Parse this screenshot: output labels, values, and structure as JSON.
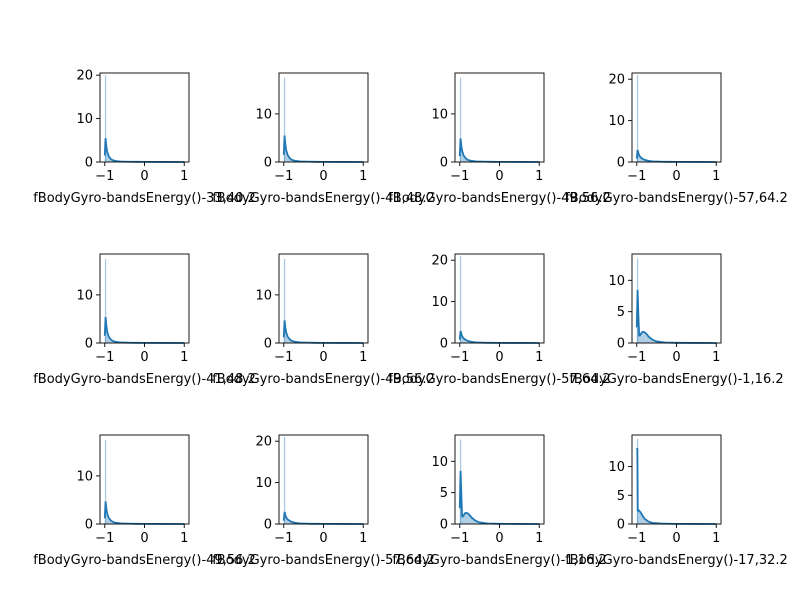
{
  "chart_data": [
    {
      "type": "area",
      "xlabel": "fBodyGyro-bandsEnergy()-33,40.2",
      "xticks": [
        -1,
        0,
        1
      ],
      "yticks": [
        0,
        10,
        20
      ],
      "ylim": [
        0,
        20.5
      ],
      "xlim": [
        -1.12,
        1.12
      ],
      "spike_x": -0.98,
      "spike_height": 20,
      "kde": {
        "x": [
          -1.0,
          -0.98,
          -0.96,
          -0.94,
          -0.9,
          -0.85,
          -0.8,
          -0.7,
          -0.6,
          -0.4,
          -0.2,
          0,
          0.5,
          1.0
        ],
        "y": [
          1.5,
          5.5,
          3.6,
          2.4,
          1.3,
          0.7,
          0.4,
          0.2,
          0.12,
          0.06,
          0.04,
          0.03,
          0.01,
          0.0
        ]
      }
    },
    {
      "type": "area",
      "xlabel": "fBodyGyro-bandsEnergy()-41,48.2",
      "xticks": [
        -1,
        0,
        1
      ],
      "yticks": [
        0,
        10
      ],
      "ylim": [
        0,
        18.5
      ],
      "xlim": [
        -1.12,
        1.12
      ],
      "spike_x": -0.98,
      "spike_height": 17.5,
      "kde": {
        "x": [
          -1.0,
          -0.98,
          -0.96,
          -0.94,
          -0.9,
          -0.85,
          -0.8,
          -0.7,
          -0.6,
          -0.4,
          -0.2,
          0,
          0.5,
          1.0
        ],
        "y": [
          1.5,
          5.5,
          3.7,
          2.5,
          1.4,
          0.8,
          0.45,
          0.22,
          0.13,
          0.07,
          0.04,
          0.03,
          0.01,
          0.0
        ]
      }
    },
    {
      "type": "area",
      "xlabel": "fBodyGyro-bandsEnergy()-49,56.2",
      "xticks": [
        -1,
        0,
        1
      ],
      "yticks": [
        0,
        10
      ],
      "ylim": [
        0,
        18.5
      ],
      "xlim": [
        -1.12,
        1.12
      ],
      "spike_x": -0.98,
      "spike_height": 17.5,
      "kde": {
        "x": [
          -1.0,
          -0.98,
          -0.96,
          -0.94,
          -0.9,
          -0.85,
          -0.8,
          -0.7,
          -0.6,
          -0.4,
          -0.2,
          0,
          0.5,
          1.0
        ],
        "y": [
          1.2,
          4.9,
          3.3,
          2.3,
          1.3,
          0.75,
          0.45,
          0.22,
          0.13,
          0.07,
          0.04,
          0.03,
          0.01,
          0.0
        ]
      }
    },
    {
      "type": "area",
      "xlabel": "fBodyGyro-bandsEnergy()-57,64.2",
      "xticks": [
        -1,
        0,
        1
      ],
      "yticks": [
        0,
        10,
        20
      ],
      "ylim": [
        0,
        21.5
      ],
      "xlim": [
        -1.12,
        1.12
      ],
      "spike_x": -0.98,
      "spike_height": 21,
      "kde": {
        "x": [
          -1.0,
          -0.98,
          -0.96,
          -0.94,
          -0.9,
          -0.85,
          -0.8,
          -0.7,
          -0.6,
          -0.4,
          -0.2,
          0,
          0.5,
          1.0
        ],
        "y": [
          0.8,
          2.9,
          2.2,
          1.6,
          1.1,
          0.75,
          0.5,
          0.28,
          0.16,
          0.08,
          0.05,
          0.03,
          0.01,
          0.0
        ]
      }
    },
    {
      "type": "area",
      "xlabel": "fBodyGyro-bandsEnergy()-41,48.2",
      "xticks": [
        -1,
        0,
        1
      ],
      "yticks": [
        0,
        10
      ],
      "ylim": [
        0,
        18.5
      ],
      "xlim": [
        -1.12,
        1.12
      ],
      "spike_x": -0.98,
      "spike_height": 17.5,
      "kde": {
        "x": [
          -1.0,
          -0.98,
          -0.96,
          -0.94,
          -0.9,
          -0.85,
          -0.8,
          -0.7,
          -0.6,
          -0.4,
          -0.2,
          0,
          0.5,
          1.0
        ],
        "y": [
          1.5,
          5.4,
          3.6,
          2.4,
          1.3,
          0.75,
          0.42,
          0.2,
          0.12,
          0.06,
          0.04,
          0.03,
          0.01,
          0.0
        ]
      }
    },
    {
      "type": "area",
      "xlabel": "fBodyGyro-bandsEnergy()-49,56.2",
      "xticks": [
        -1,
        0,
        1
      ],
      "yticks": [
        0,
        10
      ],
      "ylim": [
        0,
        18.5
      ],
      "xlim": [
        -1.12,
        1.12
      ],
      "spike_x": -0.98,
      "spike_height": 17.5,
      "kde": {
        "x": [
          -1.0,
          -0.98,
          -0.96,
          -0.94,
          -0.9,
          -0.85,
          -0.8,
          -0.7,
          -0.6,
          -0.4,
          -0.2,
          0,
          0.5,
          1.0
        ],
        "y": [
          1.2,
          4.7,
          3.2,
          2.2,
          1.3,
          0.75,
          0.45,
          0.22,
          0.13,
          0.07,
          0.04,
          0.03,
          0.01,
          0.0
        ]
      }
    },
    {
      "type": "area",
      "xlabel": "fBodyGyro-bandsEnergy()-57,64.2",
      "xticks": [
        -1,
        0,
        1
      ],
      "yticks": [
        0,
        10,
        20
      ],
      "ylim": [
        0,
        21.5
      ],
      "xlim": [
        -1.12,
        1.12
      ],
      "spike_x": -0.98,
      "spike_height": 21,
      "kde": {
        "x": [
          -1.0,
          -0.98,
          -0.96,
          -0.94,
          -0.9,
          -0.85,
          -0.8,
          -0.7,
          -0.6,
          -0.4,
          -0.2,
          0,
          0.5,
          1.0
        ],
        "y": [
          0.8,
          2.9,
          2.2,
          1.6,
          1.1,
          0.75,
          0.5,
          0.28,
          0.16,
          0.08,
          0.05,
          0.03,
          0.01,
          0.0
        ]
      }
    },
    {
      "type": "area",
      "xlabel": "fBodyGyro-bandsEnergy()-1,16.2",
      "xticks": [
        -1,
        0,
        1
      ],
      "yticks": [
        0,
        5,
        10
      ],
      "ylim": [
        0,
        14.2
      ],
      "xlim": [
        -1.12,
        1.12
      ],
      "spike_x": -0.98,
      "spike_height": 13.5,
      "kde": {
        "x": [
          -1.0,
          -0.98,
          -0.96,
          -0.94,
          -0.92,
          -0.9,
          -0.87,
          -0.84,
          -0.8,
          -0.75,
          -0.7,
          -0.6,
          -0.5,
          -0.3,
          0,
          0.5,
          1.0
        ],
        "y": [
          2.5,
          8.5,
          4.6,
          1.2,
          1.2,
          1.4,
          1.7,
          1.8,
          1.7,
          1.4,
          1.0,
          0.5,
          0.25,
          0.08,
          0.03,
          0.01,
          0.0
        ]
      }
    },
    {
      "type": "area",
      "xlabel": "fBodyGyro-bandsEnergy()-49,56.2",
      "xticks": [
        -1,
        0,
        1
      ],
      "yticks": [
        0,
        10
      ],
      "ylim": [
        0,
        18.5
      ],
      "xlim": [
        -1.12,
        1.12
      ],
      "spike_x": -0.98,
      "spike_height": 17.5,
      "kde": {
        "x": [
          -1.0,
          -0.98,
          -0.96,
          -0.94,
          -0.9,
          -0.85,
          -0.8,
          -0.7,
          -0.6,
          -0.4,
          -0.2,
          0,
          0.5,
          1.0
        ],
        "y": [
          1.2,
          4.7,
          3.2,
          2.2,
          1.3,
          0.75,
          0.45,
          0.22,
          0.13,
          0.07,
          0.04,
          0.03,
          0.01,
          0.0
        ]
      }
    },
    {
      "type": "area",
      "xlabel": "fBodyGyro-bandsEnergy()-57,64.2",
      "xticks": [
        -1,
        0,
        1
      ],
      "yticks": [
        0,
        10,
        20
      ],
      "ylim": [
        0,
        21.5
      ],
      "xlim": [
        -1.12,
        1.12
      ],
      "spike_x": -0.98,
      "spike_height": 21,
      "kde": {
        "x": [
          -1.0,
          -0.98,
          -0.96,
          -0.94,
          -0.9,
          -0.85,
          -0.8,
          -0.7,
          -0.6,
          -0.4,
          -0.2,
          0,
          0.5,
          1.0
        ],
        "y": [
          0.8,
          2.9,
          2.2,
          1.6,
          1.1,
          0.75,
          0.5,
          0.28,
          0.16,
          0.08,
          0.05,
          0.03,
          0.01,
          0.0
        ]
      }
    },
    {
      "type": "area",
      "xlabel": "fBodyGyro-bandsEnergy()-1,16.2",
      "xticks": [
        -1,
        0,
        1
      ],
      "yticks": [
        0,
        5,
        10
      ],
      "ylim": [
        0,
        14.2
      ],
      "xlim": [
        -1.12,
        1.12
      ],
      "spike_x": -0.98,
      "spike_height": 13.5,
      "kde": {
        "x": [
          -1.0,
          -0.98,
          -0.96,
          -0.94,
          -0.92,
          -0.9,
          -0.87,
          -0.84,
          -0.8,
          -0.75,
          -0.7,
          -0.6,
          -0.5,
          -0.3,
          0,
          0.5,
          1.0
        ],
        "y": [
          2.5,
          8.5,
          4.6,
          1.2,
          1.2,
          1.4,
          1.7,
          1.8,
          1.7,
          1.4,
          1.0,
          0.5,
          0.25,
          0.08,
          0.03,
          0.01,
          0.0
        ]
      }
    },
    {
      "type": "area",
      "xlabel": "fBodyGyro-bandsEnergy()-17,32.2",
      "xticks": [
        -1,
        0,
        1
      ],
      "yticks": [
        0,
        5,
        10
      ],
      "ylim": [
        0,
        15.5
      ],
      "xlim": [
        -1.12,
        1.12
      ],
      "spike_x": -0.98,
      "spike_height": 14.8,
      "kde": {
        "x": [
          -1.0,
          -0.985,
          -0.975,
          -0.965,
          -0.95,
          -0.9,
          -0.85,
          -0.8,
          -0.7,
          -0.6,
          -0.4,
          -0.2,
          0,
          0.5,
          1.0
        ],
        "y": [
          13,
          13.2,
          2.2,
          2.4,
          2.4,
          2.0,
          1.4,
          0.9,
          0.4,
          0.2,
          0.08,
          0.04,
          0.02,
          0.01,
          0.0
        ]
      }
    }
  ]
}
